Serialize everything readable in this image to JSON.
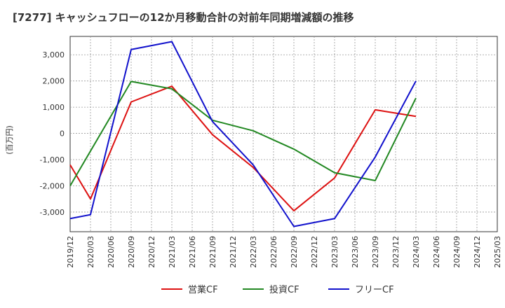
{
  "chart_data": {
    "type": "line",
    "title": "[7277]  キャッシュフローの12か月移動合計の対前年同期増減額の推移",
    "ylabel": "(百万円)",
    "xlabel": "",
    "x": [
      "2019/12",
      "2020/03",
      "2020/06",
      "2020/09",
      "2020/12",
      "2021/03",
      "2021/06",
      "2021/09",
      "2021/12",
      "2022/03",
      "2022/06",
      "2022/09",
      "2022/12",
      "2023/03",
      "2023/06",
      "2023/09",
      "2023/12",
      "2024/03",
      "2024/06",
      "2024/09",
      "2024/12",
      "2025/03"
    ],
    "yticks": [
      3000,
      2000,
      1000,
      0,
      -1000,
      -2000,
      -3000
    ],
    "ytick_labels": [
      "3,000",
      "2,000",
      "1,000",
      "0",
      "-1,000",
      "-2,000",
      "-3,000"
    ],
    "ylim": [
      -3750,
      3700
    ],
    "grid": true,
    "legend_position": "bottom",
    "series": [
      {
        "name": "営業CF",
        "color": "#dd1111",
        "values": [
          -1200,
          -2500,
          null,
          1200,
          null,
          1800,
          null,
          -50,
          null,
          -1300,
          null,
          -2950,
          null,
          -1700,
          null,
          900,
          null,
          650,
          null,
          null,
          null,
          null
        ]
      },
      {
        "name": "投資CF",
        "color": "#228822",
        "values": [
          -2000,
          null,
          null,
          1980,
          null,
          1700,
          null,
          500,
          null,
          100,
          null,
          -600,
          null,
          -1500,
          null,
          -1800,
          null,
          1350,
          null,
          null,
          null,
          null
        ]
      },
      {
        "name": "フリーCF",
        "color": "#1111cc",
        "values": [
          -3250,
          -3100,
          null,
          3200,
          null,
          3500,
          null,
          450,
          null,
          -1200,
          null,
          -3550,
          null,
          -3250,
          null,
          -900,
          null,
          2000,
          null,
          null,
          null,
          null
        ]
      }
    ]
  }
}
